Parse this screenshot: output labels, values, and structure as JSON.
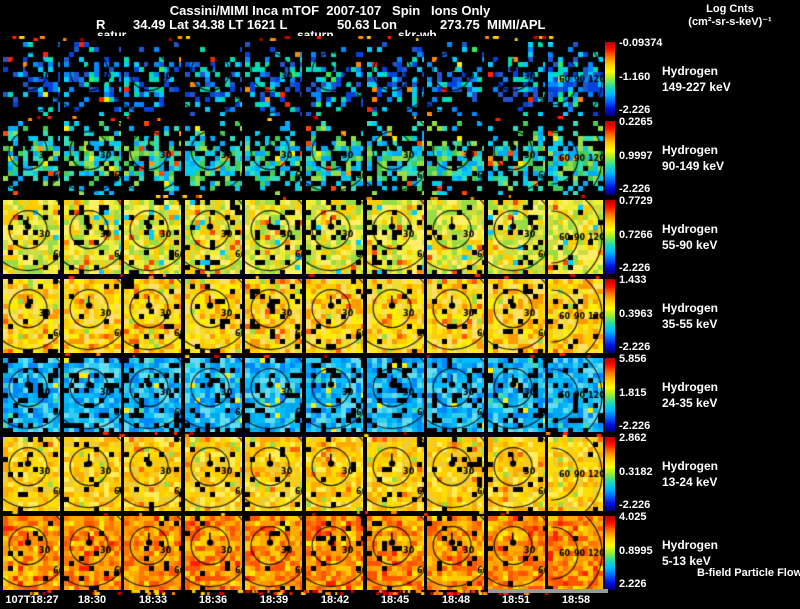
{
  "header": {
    "title": "Cassini/MIMI Inca mTOF  2007-107   Spin   Ions Only",
    "line2": [
      "R",
      "34.49 Lat 34.38 LT 1621 L",
      "50.63 Lon",
      "273.75  MIMI/APL"
    ],
    "colorbar_title_1": "Log Cnts",
    "colorbar_title_2": "(cm²-sr-s-keV)⁻¹"
  },
  "event_labels": [
    "satur",
    "saturn",
    "skr-wh"
  ],
  "chart_data": {
    "type": "heatmap",
    "title": "Cassini/MIMI Inca mTOF 2007-107 Spin Ions Only",
    "colorbar_label": "Log Cnts (cm²-sr-s-keV)⁻¹",
    "time_ticks": [
      "107T18:27",
      "18:30",
      "18:33",
      "18:36",
      "18:39",
      "18:42",
      "18:45",
      "18:48",
      "18:51",
      "18:58"
    ],
    "bfield_label": "B-field Particle Flow",
    "panels_per_row": 10,
    "contour_labels_small": [
      "30",
      "60",
      "90"
    ],
    "contour_labels_wide": [
      "60",
      "90",
      "120"
    ],
    "colorbar_colors": [
      "#bb0000",
      "#ff1100",
      "#ff7700",
      "#ffcc00",
      "#fffa00",
      "#99ee33",
      "#22ddaa",
      "#00bbff",
      "#0066ff",
      "#0011dd",
      "#000077"
    ],
    "tick_colors": [
      "#ff2200",
      "#ff8800",
      "#ffcc00",
      "#cc0000"
    ],
    "rows": [
      {
        "species": "Hydrogen",
        "energy": "149-227 keV",
        "scale": {
          "top": "-0.09374",
          "mid": "-1.160",
          "bottom": "-2.226"
        },
        "palette": [
          "#0044dd",
          "#0088ff",
          "#00ccff",
          "#00ddb0",
          "#2255cc"
        ],
        "accent": [
          "#ffee00",
          "#ff8800",
          "#ff2200",
          "#33ee55"
        ],
        "accent_prob": 0.06,
        "density": 0.52,
        "wide_density": 0.8,
        "band": true
      },
      {
        "species": "Hydrogen",
        "energy": "90-149 keV",
        "scale": {
          "top": "0.2265",
          "mid": "0.9997",
          "bottom": "-2.226"
        },
        "palette": [
          "#00ccee",
          "#33ddbb",
          "#44cc55",
          "#99dd44",
          "#00aaff"
        ],
        "accent": [
          "#ffee00",
          "#ff9900",
          "#ff4400"
        ],
        "accent_prob": 0.07,
        "density": 0.7,
        "wide_density": 0.88,
        "band": true
      },
      {
        "species": "Hydrogen",
        "energy": "55-90 keV",
        "scale": {
          "top": "0.7729",
          "mid": "0.7266",
          "bottom": "-2.226"
        },
        "palette": [
          "#eeee33",
          "#ccdd44",
          "#99dd44",
          "#ffcc00",
          "#ffee66"
        ],
        "accent": [
          "#ff8800",
          "#00ccff",
          "#ff4400"
        ],
        "accent_prob": 0.06,
        "density": 0.9,
        "wide_density": 0.95,
        "band": false
      },
      {
        "species": "Hydrogen",
        "energy": "35-55 keV",
        "scale": {
          "top": "1.433",
          "mid": "0.3963",
          "bottom": "-2.226"
        },
        "palette": [
          "#ffee00",
          "#ffcc00",
          "#eedd33",
          "#ff9900",
          "#ffe066"
        ],
        "accent": [
          "#ff5500",
          "#99dd44"
        ],
        "accent_prob": 0.05,
        "density": 0.93,
        "wide_density": 0.96,
        "band": false
      },
      {
        "species": "Hydrogen",
        "energy": "24-35 keV",
        "scale": {
          "top": "5.856",
          "mid": "1.815",
          "bottom": "-2.226"
        },
        "palette": [
          "#00bbff",
          "#33ccee",
          "#00aaee",
          "#66ddee",
          "#0088ff"
        ],
        "accent": [
          "#ffee00",
          "#44ddaa"
        ],
        "accent_prob": 0.05,
        "density": 0.8,
        "wide_density": 0.85,
        "band": false
      },
      {
        "species": "Hydrogen",
        "energy": "13-24 keV",
        "scale": {
          "top": "2.862",
          "mid": "0.3182",
          "bottom": "-2.226"
        },
        "palette": [
          "#ffdd00",
          "#ffcc00",
          "#ffaa00",
          "#eecc33",
          "#ffee55"
        ],
        "accent": [
          "#ff6600",
          "#99dd44"
        ],
        "accent_prob": 0.05,
        "density": 0.93,
        "wide_density": 0.96,
        "band": false
      },
      {
        "species": "Hydrogen",
        "energy": "5-13 keV",
        "scale": {
          "top": "4.025",
          "mid": "0.8995",
          "bottom": "2.226"
        },
        "palette": [
          "#ff9900",
          "#ff7700",
          "#ffaa00",
          "#ff5500",
          "#ffcc00"
        ],
        "accent": [
          "#ff2200",
          "#ffee00"
        ],
        "accent_prob": 0.08,
        "density": 0.94,
        "wide_density": 0.97,
        "band": false
      }
    ]
  }
}
